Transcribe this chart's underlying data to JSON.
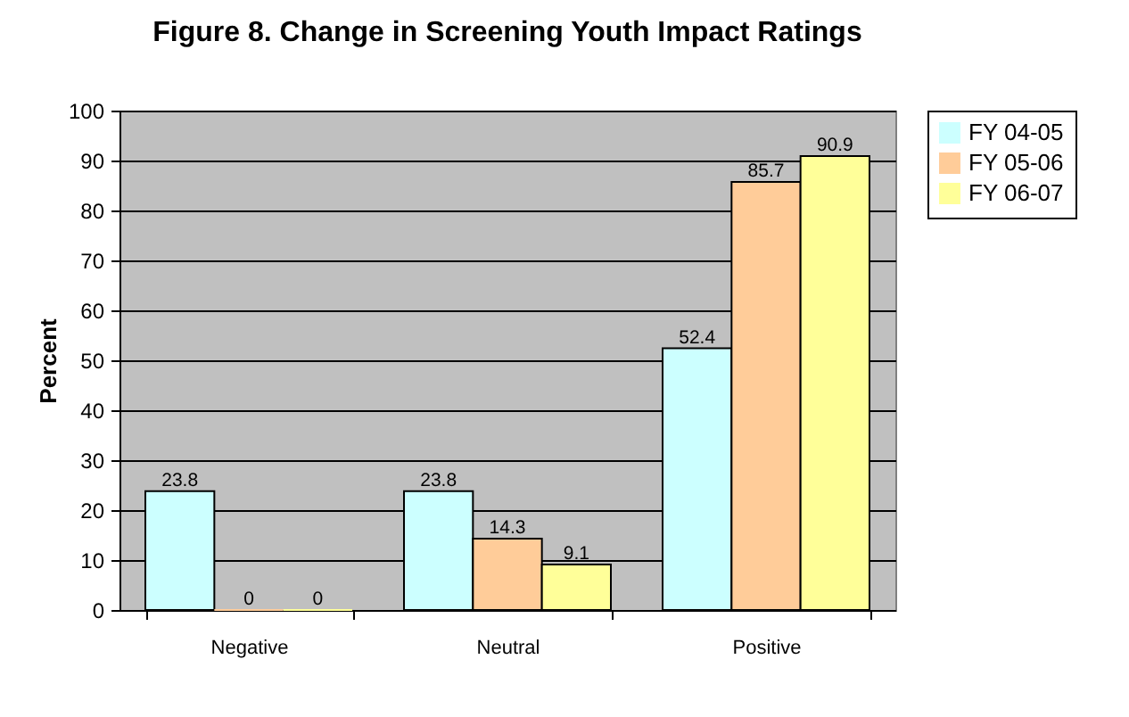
{
  "chart_data": {
    "type": "bar",
    "title": "Figure 8. Change in Screening Youth Impact Ratings",
    "ylabel": "Percent",
    "categories": [
      "Negative",
      "Neutral",
      "Positive"
    ],
    "series": [
      {
        "name": "FY 04-05",
        "color": "#ccffff",
        "values": [
          23.8,
          23.8,
          52.4
        ]
      },
      {
        "name": "FY 05-06",
        "color": "#ffcc99",
        "values": [
          0,
          14.3,
          85.7
        ]
      },
      {
        "name": "FY 06-07",
        "color": "#ffff99",
        "values": [
          0,
          9.1,
          90.9
        ]
      }
    ],
    "ylim": [
      0,
      100
    ],
    "yticks": [
      0,
      10,
      20,
      30,
      40,
      50,
      60,
      70,
      80,
      90,
      100
    ],
    "grid": "y",
    "legend": "right",
    "data_labels": true
  }
}
